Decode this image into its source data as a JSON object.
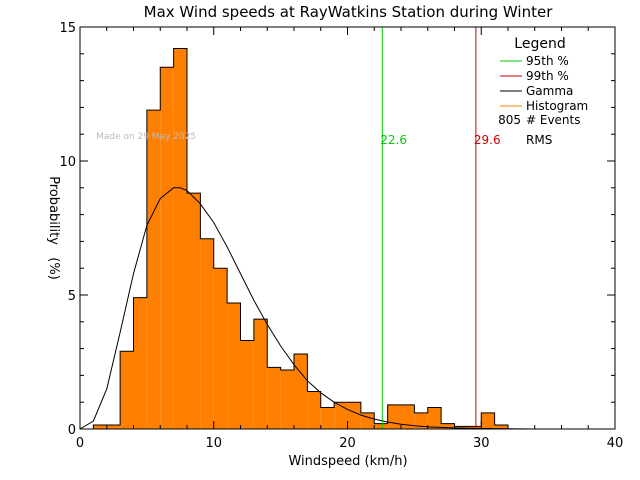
{
  "chart_data": {
    "type": "bar",
    "title": "Max Wind speeds at RayWatkins Station during Winter",
    "xlabel": "Windspeed (km/h)",
    "ylabel": "Probability   (%)",
    "xlim": [
      0,
      40
    ],
    "ylim": [
      0,
      15
    ],
    "xticks": [
      "0",
      "10",
      "20",
      "30",
      "40"
    ],
    "yticks": [
      "0",
      "5",
      "10",
      "15"
    ],
    "watermark": "Made on 29 May 2025",
    "bin_width": 1,
    "histogram": {
      "name": "Histogram",
      "bins": [
        {
          "x0": 1,
          "value": 0.15
        },
        {
          "x0": 2,
          "value": 0.15
        },
        {
          "x0": 3,
          "value": 2.9
        },
        {
          "x0": 4,
          "value": 4.9
        },
        {
          "x0": 5,
          "value": 11.9
        },
        {
          "x0": 6,
          "value": 13.5
        },
        {
          "x0": 7,
          "value": 14.2
        },
        {
          "x0": 8,
          "value": 8.8
        },
        {
          "x0": 9,
          "value": 7.1
        },
        {
          "x0": 10,
          "value": 6.0
        },
        {
          "x0": 11,
          "value": 4.7
        },
        {
          "x0": 12,
          "value": 3.3
        },
        {
          "x0": 13,
          "value": 4.1
        },
        {
          "x0": 14,
          "value": 2.3
        },
        {
          "x0": 15,
          "value": 2.2
        },
        {
          "x0": 16,
          "value": 2.8
        },
        {
          "x0": 17,
          "value": 1.4
        },
        {
          "x0": 18,
          "value": 0.8
        },
        {
          "x0": 19,
          "value": 1.0
        },
        {
          "x0": 20,
          "value": 1.0
        },
        {
          "x0": 21,
          "value": 0.6
        },
        {
          "x0": 22,
          "value": 0.2
        },
        {
          "x0": 23,
          "value": 0.9
        },
        {
          "x0": 24,
          "value": 0.9
        },
        {
          "x0": 25,
          "value": 0.6
        },
        {
          "x0": 26,
          "value": 0.8
        },
        {
          "x0": 27,
          "value": 0.2
        },
        {
          "x0": 28,
          "value": 0.1
        },
        {
          "x0": 29,
          "value": 0.1
        },
        {
          "x0": 30,
          "value": 0.6
        },
        {
          "x0": 31,
          "value": 0.15
        }
      ]
    },
    "gamma_curve": {
      "name": "Gamma",
      "x": [
        0,
        1,
        2,
        3,
        4,
        5,
        6,
        7,
        7.5,
        8,
        9,
        10,
        11,
        12,
        13,
        14,
        15,
        16,
        17,
        18,
        19,
        20,
        21,
        22,
        23,
        24,
        25,
        26,
        28,
        30,
        32,
        34
      ],
      "y": [
        0,
        0.3,
        1.5,
        3.6,
        5.8,
        7.6,
        8.6,
        9.0,
        9.0,
        8.9,
        8.4,
        7.7,
        6.8,
        5.8,
        4.8,
        3.9,
        3.1,
        2.4,
        1.8,
        1.35,
        1.0,
        0.73,
        0.52,
        0.37,
        0.26,
        0.18,
        0.12,
        0.08,
        0.04,
        0.02,
        0.01,
        0.0
      ]
    },
    "percentile_95": {
      "name": "95th %",
      "value": 22.6,
      "label": "22.6",
      "color": "#00cc00"
    },
    "percentile_99": {
      "name": "99th %",
      "value": 29.6,
      "label": "29.6",
      "color": "#cc0000"
    },
    "legend": {
      "title": "Legend",
      "position": "top-right",
      "items": [
        {
          "label": "95th %",
          "color": "#00cc00"
        },
        {
          "label": "99th %",
          "color": "#cc0000"
        },
        {
          "label": "Gamma",
          "color": "#000000"
        },
        {
          "label": "Histogram",
          "color": "#ff8000"
        }
      ],
      "events_count": "805",
      "events_label": "# Events",
      "rms_label": "RMS"
    },
    "colors": {
      "bar_fill": "#ff8000",
      "bar_edge": "#000000",
      "axis": "#000000",
      "watermark": "#bbbbbb"
    }
  }
}
